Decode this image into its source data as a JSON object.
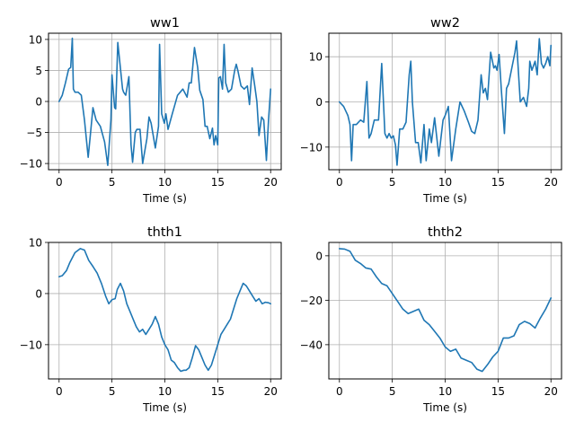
{
  "chart_data": [
    {
      "type": "line",
      "title": "ww1",
      "xlabel": "Time (s)",
      "ylabel": "",
      "xlim": [
        -1,
        21
      ],
      "ylim": [
        -11,
        11
      ],
      "xticks": [
        0,
        5,
        10,
        15,
        20
      ],
      "yticks": [
        -10,
        -5,
        0,
        5,
        10
      ],
      "grid": true,
      "color": "#1f77b4",
      "series": [
        {
          "x": [
            0,
            0.3,
            0.6,
            0.9,
            1.1,
            1.25,
            1.35,
            1.5,
            1.8,
            2.1,
            2.4,
            2.75,
            2.95,
            3.2,
            3.5,
            3.9,
            4.3,
            4.6,
            4.9,
            5.0,
            5.25,
            5.35,
            5.55,
            6.0,
            6.1,
            6.3,
            6.6,
            6.8,
            6.95,
            7.2,
            7.35,
            7.65,
            7.9,
            8.3,
            8.5,
            8.7,
            9.1,
            9.4,
            9.5,
            9.7,
            9.95,
            10.1,
            10.3,
            10.7,
            11.2,
            11.7,
            12.1,
            12.3,
            12.5,
            12.8,
            13.1,
            13.3,
            13.6,
            13.8,
            14.0,
            14.25,
            14.5,
            14.65,
            14.8,
            15.0,
            15.1,
            15.25,
            15.45,
            15.6,
            15.75,
            16.0,
            16.3,
            16.6,
            16.75,
            16.9,
            17.2,
            17.5,
            17.8,
            18.0,
            18.25,
            18.5,
            18.7,
            18.9,
            19.15,
            19.35,
            19.6,
            19.8,
            20.0
          ],
          "y": [
            0,
            1,
            3,
            5.2,
            5.5,
            10.2,
            2,
            1.5,
            1.5,
            1,
            -3,
            -9,
            -5.5,
            -1,
            -3,
            -4,
            -6.5,
            -10.3,
            -3,
            4.3,
            -1,
            -1.2,
            9.5,
            2,
            1.5,
            1,
            4,
            -7,
            -9.8,
            -5,
            -4.5,
            -4.5,
            -10,
            -6,
            -2.5,
            -3.5,
            -7.5,
            -4,
            9.2,
            -2,
            -3.5,
            -2,
            -4.5,
            -2,
            1,
            2,
            0.7,
            3,
            3,
            8.7,
            5.5,
            1.8,
            0.3,
            -4,
            -4,
            -6,
            -4.3,
            -7,
            -5.5,
            -7,
            3.8,
            4,
            2,
            9.2,
            3,
            1.5,
            2,
            5,
            6,
            5,
            2.5,
            2,
            2.5,
            -0.5,
            5.4,
            2.5,
            0,
            -5.5,
            -2.5,
            -3,
            -9.5,
            -3,
            2
          ]
        }
      ]
    },
    {
      "type": "line",
      "title": "ww2",
      "xlabel": "Time (s)",
      "ylabel": "",
      "xlim": [
        -1,
        21
      ],
      "ylim": [
        -15,
        15.2
      ],
      "xticks": [
        0,
        5,
        10,
        15,
        20
      ],
      "yticks": [
        -10,
        0,
        10
      ],
      "grid": true,
      "color": "#1f77b4",
      "series": [
        {
          "x": [
            0,
            0.4,
            0.8,
            1.0,
            1.15,
            1.3,
            1.6,
            2.0,
            2.3,
            2.6,
            2.8,
            3.0,
            3.3,
            3.7,
            4.0,
            4.3,
            4.5,
            4.7,
            4.9,
            5.1,
            5.3,
            5.45,
            5.7,
            6.0,
            6.3,
            6.6,
            6.75,
            6.9,
            7.2,
            7.45,
            7.7,
            8.0,
            8.2,
            8.5,
            8.7,
            9.0,
            9.4,
            9.8,
            10.0,
            10.3,
            10.6,
            11.0,
            11.4,
            11.8,
            12.2,
            12.5,
            12.8,
            13.1,
            13.4,
            13.6,
            13.8,
            14.0,
            14.3,
            14.6,
            14.75,
            14.9,
            15.1,
            15.3,
            15.6,
            15.8,
            16.0,
            16.3,
            16.6,
            16.75,
            16.85,
            17.1,
            17.4,
            17.7,
            17.9,
            18.0,
            18.2,
            18.5,
            18.7,
            18.9,
            19.1,
            19.3,
            19.5,
            19.7,
            19.9,
            20.0
          ],
          "y": [
            0,
            -1,
            -3,
            -5,
            -13,
            -5,
            -5,
            -4,
            -4.5,
            4.5,
            -8,
            -7,
            -4,
            -4,
            8.5,
            -7,
            -8,
            -7,
            -8,
            -7.5,
            -9.5,
            -14,
            -6,
            -6,
            -4.5,
            6,
            9,
            0,
            -9,
            -9,
            -13.5,
            -5,
            -13,
            -6,
            -9,
            -3.5,
            -12,
            -4,
            -3,
            -1,
            -13,
            -6,
            0,
            -2,
            -4.5,
            -6.5,
            -7,
            -4,
            6,
            2,
            3,
            0.5,
            11,
            7.5,
            8,
            7,
            10.5,
            3,
            -7,
            3,
            4,
            7.5,
            11,
            13.5,
            9.5,
            0,
            1,
            -1,
            3,
            9,
            7,
            9,
            6,
            14,
            8.5,
            7.5,
            8.5,
            10,
            8,
            12.5
          ]
        }
      ]
    },
    {
      "type": "line",
      "title": "thth1",
      "xlabel": "Time (s)",
      "ylabel": "",
      "xlim": [
        -1,
        21
      ],
      "ylim": [
        -16.7,
        10
      ],
      "xticks": [
        0,
        5,
        10,
        15,
        20
      ],
      "yticks": [
        -10,
        0,
        10
      ],
      "grid": true,
      "color": "#1f77b4",
      "series": [
        {
          "x": [
            0,
            0.3,
            0.7,
            1.0,
            1.5,
            2.0,
            2.4,
            2.8,
            3.2,
            3.6,
            4.0,
            4.4,
            4.7,
            5.0,
            5.3,
            5.5,
            5.8,
            6.1,
            6.4,
            6.7,
            7.0,
            7.3,
            7.6,
            7.9,
            8.2,
            8.5,
            8.8,
            9.1,
            9.4,
            9.7,
            10.0,
            10.3,
            10.6,
            10.9,
            11.2,
            11.5,
            11.8,
            12.0,
            12.3,
            12.6,
            12.9,
            13.2,
            13.5,
            13.8,
            14.1,
            14.4,
            14.7,
            15.0,
            15.3,
            15.6,
            15.9,
            16.2,
            16.5,
            16.8,
            17.1,
            17.4,
            17.7,
            18.0,
            18.3,
            18.6,
            18.9,
            19.2,
            19.5,
            19.8,
            20.0
          ],
          "y": [
            3.3,
            3.5,
            4.5,
            6.0,
            8.0,
            8.8,
            8.5,
            6.5,
            5.3,
            4.0,
            2.0,
            -0.5,
            -2.0,
            -1.2,
            -1.0,
            0.8,
            2.0,
            0.5,
            -2.0,
            -3.5,
            -5.0,
            -6.5,
            -7.5,
            -7.0,
            -8.0,
            -7.0,
            -6.0,
            -4.5,
            -6.0,
            -8.5,
            -10.0,
            -11.0,
            -13.0,
            -13.5,
            -14.5,
            -15.2,
            -15.0,
            -15.0,
            -14.5,
            -12.5,
            -10.2,
            -11.0,
            -12.5,
            -14.0,
            -15.0,
            -14.0,
            -12.0,
            -10.0,
            -8.0,
            -7.0,
            -6.0,
            -5.0,
            -3.0,
            -1.0,
            0.5,
            2.0,
            1.5,
            0.5,
            -0.5,
            -1.5,
            -1.0,
            -2.0,
            -1.7,
            -1.8,
            -2.0
          ]
        }
      ]
    },
    {
      "type": "line",
      "title": "thth2",
      "xlabel": "Time (s)",
      "ylabel": "",
      "xlim": [
        -1,
        21
      ],
      "ylim": [
        -55.4,
        6
      ],
      "xticks": [
        0,
        5,
        10,
        15,
        20
      ],
      "yticks": [
        -40,
        -20,
        0
      ],
      "grid": true,
      "color": "#1f77b4",
      "series": [
        {
          "x": [
            0,
            0.5,
            1.0,
            1.5,
            2.0,
            2.5,
            3.0,
            3.5,
            4.0,
            4.5,
            5.0,
            5.5,
            6.0,
            6.5,
            7.0,
            7.5,
            8.0,
            8.5,
            9.0,
            9.5,
            10.0,
            10.5,
            11.0,
            11.5,
            12.0,
            12.5,
            13.0,
            13.5,
            14.0,
            14.5,
            15.0,
            15.5,
            16.0,
            16.5,
            17.0,
            17.5,
            18.0,
            18.5,
            19.0,
            19.5,
            20.0
          ],
          "y": [
            3.2,
            3.0,
            2.0,
            -2.0,
            -3.5,
            -5.5,
            -6.0,
            -9.5,
            -12.5,
            -13.5,
            -17.0,
            -20.5,
            -24.0,
            -26.0,
            -25.0,
            -24.0,
            -29.0,
            -31.0,
            -34.0,
            -37.0,
            -41.0,
            -43.0,
            -42.0,
            -46.0,
            -47.0,
            -48.0,
            -51.0,
            -52.0,
            -49.0,
            -45.5,
            -43.0,
            -37.0,
            -37.0,
            -36.0,
            -31.0,
            -29.5,
            -30.5,
            -32.5,
            -28.0,
            -24.0,
            -19.0
          ]
        }
      ]
    }
  ]
}
